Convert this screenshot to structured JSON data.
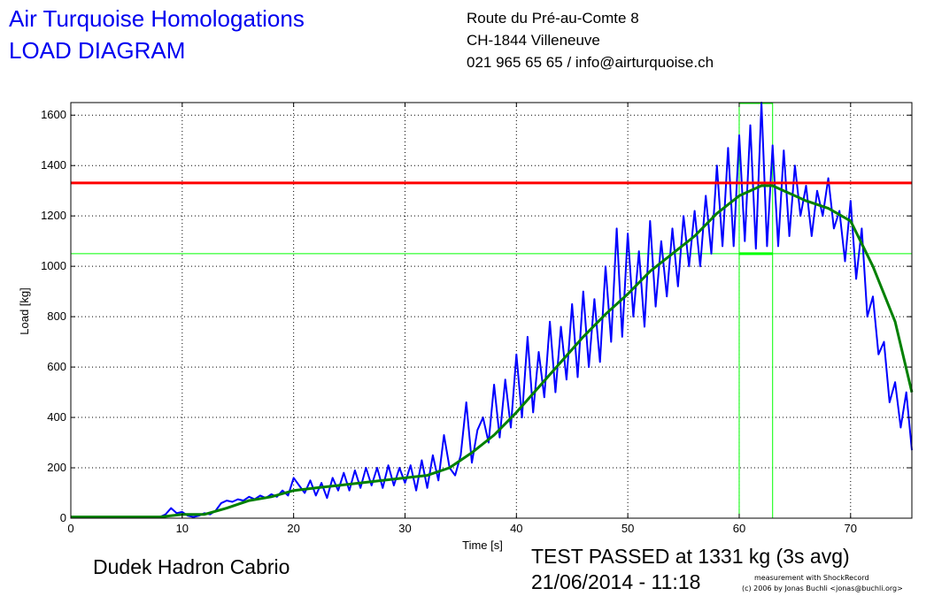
{
  "header": {
    "title_line1": "Air Turquoise Homologations",
    "title_line2": "LOAD DIAGRAM",
    "address_line1": "Route du Pré-au-Comte 8",
    "address_line2": "CH-1844 Villeneuve",
    "address_line3": "021 965 65 65 / info@airturquoise.ch"
  },
  "footer": {
    "glider_name": "Dudek Hadron Cabrio",
    "result": "TEST PASSED at 1331 kg (3s avg)",
    "datetime": "21/06/2014 - 11:18",
    "credit_line1": "measurement with ShockRecord",
    "credit_line2": "(c) 2006 by Jonas Buchli <jonas@buchli.org>"
  },
  "colors": {
    "title_blue": "#0000f0",
    "raw_series": "#0000ff",
    "avg_series": "#008000",
    "threshold_red": "#ff0000",
    "window_green": "#00ff00"
  },
  "chart_data": {
    "type": "line",
    "xlabel": "Time [s]",
    "ylabel": "Load [kg]",
    "xlim": [
      0,
      75.5
    ],
    "ylim": [
      0,
      1650
    ],
    "xticks": [
      0,
      10,
      20,
      30,
      40,
      50,
      60,
      70
    ],
    "yticks": [
      0,
      200,
      400,
      600,
      800,
      1000,
      1200,
      1400,
      1600
    ],
    "grid": true,
    "threshold_load": 1331,
    "reference_load": 1050,
    "window_x": [
      60,
      63
    ],
    "series": [
      {
        "x": [
          0,
          2,
          4,
          6,
          8,
          8.5,
          9,
          9.5,
          10,
          10.5,
          11,
          11.5,
          12,
          12.5,
          13,
          13.5,
          14,
          14.5,
          15,
          15.5,
          16,
          16.5,
          17,
          17.5,
          18,
          18.5,
          19,
          19.5,
          20,
          20.5,
          21,
          21.5,
          22,
          22.5,
          23,
          23.5,
          24,
          24.5,
          25,
          25.5,
          26,
          26.5,
          27,
          27.5,
          28,
          28.5,
          29,
          29.5,
          30,
          30.5,
          31,
          31.5,
          32,
          32.5,
          33,
          33.5,
          34,
          34.5,
          35,
          35.5,
          36,
          36.5,
          37,
          37.5,
          38,
          38.5,
          39,
          39.5,
          40,
          40.5,
          41,
          41.5,
          42,
          42.5,
          43,
          43.5,
          44,
          44.5,
          45,
          45.5,
          46,
          46.5,
          47,
          47.5,
          48,
          48.5,
          49,
          49.5,
          50,
          50.5,
          51,
          51.5,
          52,
          52.5,
          53,
          53.5,
          54,
          54.5,
          55,
          55.5,
          56,
          56.5,
          57,
          57.5,
          58,
          58.5,
          59,
          59.5,
          60,
          60.5,
          61,
          61.5,
          62,
          62.5,
          63,
          63.5,
          64,
          64.5,
          65,
          65.5,
          66,
          66.5,
          67,
          67.5,
          68,
          68.5,
          69,
          69.5,
          70,
          70.5,
          71,
          71.5,
          72,
          72.5,
          73,
          73.5,
          74,
          74.5,
          75,
          75.5
        ],
        "values": [
          5,
          5,
          5,
          5,
          5,
          15,
          40,
          20,
          25,
          10,
          5,
          10,
          20,
          15,
          30,
          60,
          70,
          65,
          75,
          70,
          85,
          75,
          90,
          80,
          95,
          85,
          110,
          90,
          160,
          130,
          100,
          150,
          90,
          140,
          80,
          160,
          110,
          180,
          110,
          190,
          120,
          200,
          130,
          200,
          120,
          210,
          130,
          200,
          140,
          210,
          110,
          230,
          120,
          250,
          150,
          330,
          200,
          170,
          250,
          460,
          220,
          350,
          400,
          300,
          530,
          320,
          550,
          360,
          650,
          400,
          720,
          420,
          660,
          480,
          780,
          500,
          760,
          550,
          850,
          560,
          900,
          600,
          870,
          620,
          1000,
          700,
          1150,
          720,
          1130,
          800,
          1060,
          760,
          1180,
          840,
          1100,
          880,
          1150,
          920,
          1200,
          1000,
          1220,
          1000,
          1280,
          1050,
          1400,
          1080,
          1470,
          1080,
          1520,
          1100,
          1560,
          1070,
          1650,
          1080,
          1480,
          1080,
          1460,
          1120,
          1400,
          1200,
          1320,
          1120,
          1300,
          1200,
          1350,
          1150,
          1220,
          1020,
          1260,
          950,
          1150,
          800,
          880,
          650,
          700,
          460,
          540,
          360,
          500,
          270
        ],
        "name": ""
      },
      {
        "x": [
          0,
          4,
          8,
          10,
          12,
          14,
          16,
          18,
          20,
          22,
          24,
          26,
          28,
          30,
          32,
          34,
          36,
          38,
          40,
          42,
          44,
          46,
          48,
          50,
          52,
          54,
          56,
          58,
          60,
          62,
          63,
          64,
          66,
          68,
          70,
          72,
          74,
          75.5
        ],
        "values": [
          5,
          5,
          5,
          15,
          15,
          40,
          70,
          85,
          110,
          120,
          130,
          140,
          150,
          160,
          170,
          200,
          260,
          330,
          420,
          520,
          620,
          720,
          810,
          890,
          980,
          1050,
          1120,
          1210,
          1280,
          1320,
          1320,
          1300,
          1260,
          1230,
          1180,
          1000,
          780,
          500
        ],
        "name": ""
      }
    ]
  }
}
